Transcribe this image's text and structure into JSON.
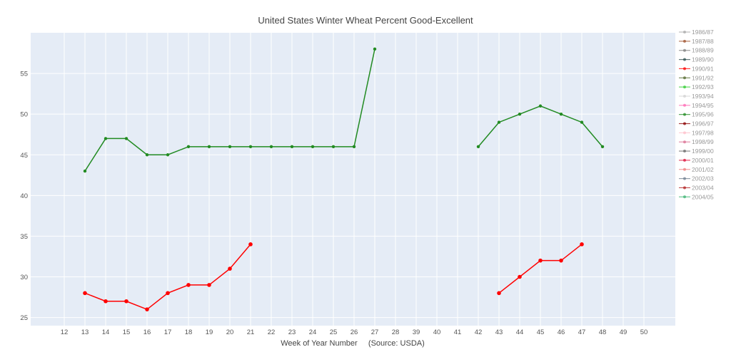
{
  "chart_data": {
    "type": "line",
    "title": "United States Winter Wheat Percent Good-Excellent",
    "xlabel": "Week of Year Number     (Source: USDA)",
    "ylabel": "",
    "x_categories": [
      "12",
      "13",
      "14",
      "15",
      "16",
      "17",
      "18",
      "19",
      "20",
      "21",
      "22",
      "23",
      "24",
      "25",
      "26",
      "27",
      "28",
      "39",
      "40",
      "41",
      "42",
      "43",
      "44",
      "45",
      "46",
      "47",
      "48",
      "49",
      "50"
    ],
    "ylim": [
      24,
      60
    ],
    "yticks": [
      25,
      30,
      35,
      40,
      45,
      50,
      55
    ],
    "grid": true,
    "plot_background": "#e5ecf6",
    "legend_position": "right",
    "series": [
      {
        "color": "#228b22",
        "x": [
          "13",
          "14",
          "15",
          "16",
          "17",
          "18",
          "19",
          "20",
          "21",
          "22",
          "23",
          "24",
          "25",
          "26",
          "27",
          "28",
          "39",
          "40",
          "41",
          "42",
          "43",
          "44",
          "45",
          "46",
          "47",
          "48"
        ],
        "values": [
          43,
          47,
          47,
          45,
          45,
          46,
          46,
          46,
          46,
          46,
          46,
          46,
          46,
          46,
          58,
          null,
          null,
          null,
          null,
          46,
          49,
          50,
          51,
          50,
          49,
          46
        ]
      },
      {
        "color": "#ff0000",
        "x": [
          "13",
          "14",
          "15",
          "16",
          "17",
          "18",
          "19",
          "20",
          "21",
          "22",
          "23",
          "24",
          "25",
          "26",
          "27",
          "28",
          "39",
          "40",
          "41",
          "42",
          "43",
          "44",
          "45",
          "46",
          "47"
        ],
        "values": [
          28,
          27,
          27,
          26,
          28,
          29,
          29,
          31,
          34,
          null,
          null,
          null,
          null,
          null,
          null,
          null,
          null,
          null,
          null,
          null,
          28,
          30,
          32,
          32,
          34
        ]
      }
    ],
    "legend": [
      {
        "label": "1986/87",
        "color": "#a9a9a9"
      },
      {
        "label": "1987/88",
        "color": "#a0522d"
      },
      {
        "label": "1988/89",
        "color": "#808080"
      },
      {
        "label": "1989/90",
        "color": "#2f4f4f"
      },
      {
        "label": "1990/91",
        "color": "#ff0000"
      },
      {
        "label": "1991/92",
        "color": "#556b2f"
      },
      {
        "label": "1992/93",
        "color": "#32cd32"
      },
      {
        "label": "1993/94",
        "color": "#d3d3d3"
      },
      {
        "label": "1994/95",
        "color": "#ff69b4"
      },
      {
        "label": "1995/96",
        "color": "#228b22"
      },
      {
        "label": "1996/97",
        "color": "#8b0000"
      },
      {
        "label": "1997/98",
        "color": "#ffc0cb"
      },
      {
        "label": "1998/99",
        "color": "#db7093"
      },
      {
        "label": "1999/00",
        "color": "#696969"
      },
      {
        "label": "2000/01",
        "color": "#dc143c"
      },
      {
        "label": "2001/02",
        "color": "#f08080"
      },
      {
        "label": "2002/03",
        "color": "#708090"
      },
      {
        "label": "2003/04",
        "color": "#b22222"
      },
      {
        "label": "2004/05",
        "color": "#3cb371"
      }
    ]
  }
}
